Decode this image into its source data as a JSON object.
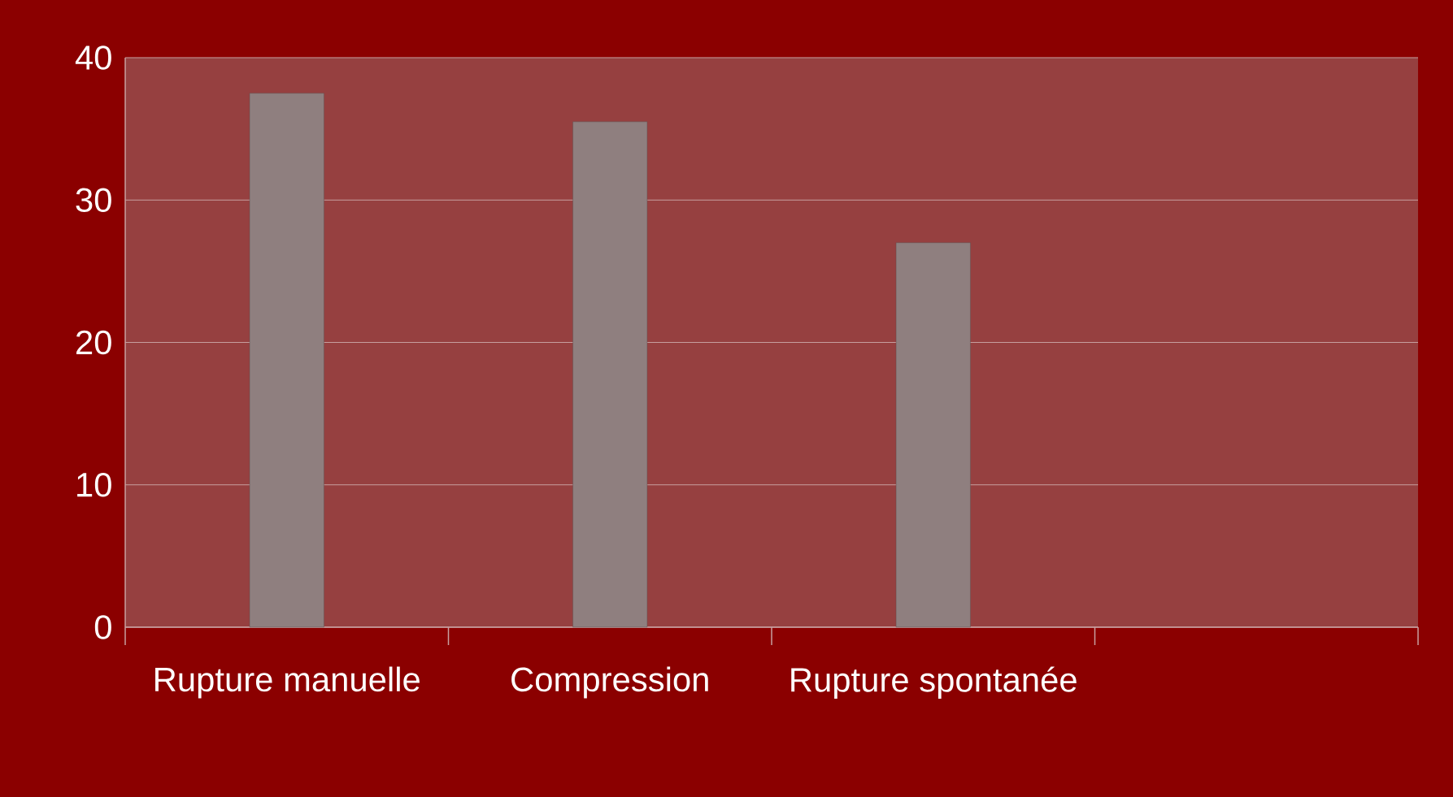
{
  "chart_data": {
    "type": "bar",
    "categories": [
      "Rupture manuelle",
      "Compression",
      "Rupture spontanée",
      null
    ],
    "values": [
      37.5,
      35.5,
      27,
      null
    ],
    "color": "#8f7f7f",
    "ylim": [
      0,
      40
    ],
    "yticks": [
      0,
      10,
      20,
      30,
      40
    ],
    "grid": "y"
  }
}
